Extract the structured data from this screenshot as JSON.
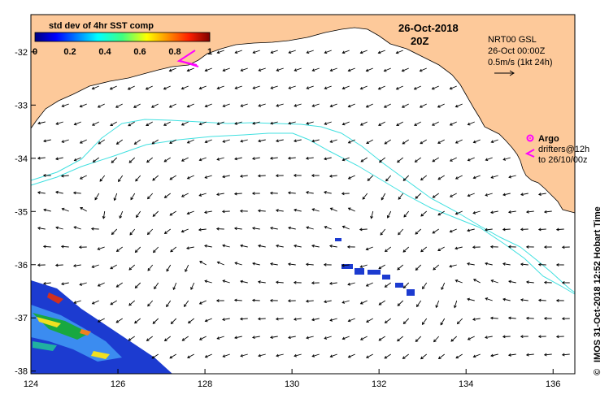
{
  "map": {
    "title_date": "26-Oct-2018",
    "title_time": "20Z",
    "colorbar": {
      "title": "std dev of 4hr SST comp",
      "ticks": [
        "0",
        "0.2",
        "0.4",
        "0.6",
        "0.8",
        "1"
      ],
      "range": [
        0,
        1
      ]
    },
    "info": {
      "line1": "NRT00 GSL",
      "line2": "26-Oct 00:00Z",
      "line3": "0.5m/s (1kt 24h)"
    },
    "legend": {
      "argo": "Argo",
      "drifters_1": "drifters@12h",
      "drifters_2": "to 26/10/00z"
    },
    "credit": "IMOS 31-Oct-2018 12:52 Hobart Time",
    "credit_symbol": "©",
    "x_ticks": [
      "124",
      "126",
      "128",
      "130",
      "132",
      "134",
      "136"
    ],
    "y_ticks": [
      "-32",
      "-33",
      "-34",
      "-35",
      "-36",
      "-37",
      "-38"
    ],
    "x_range": [
      124,
      136.5
    ],
    "y_range": [
      -38.05,
      -31.3
    ],
    "colors": {
      "land": "#fdc99a",
      "contour": "#40e0e0",
      "argo": "#ff00ff",
      "arrow": "#000000"
    }
  }
}
